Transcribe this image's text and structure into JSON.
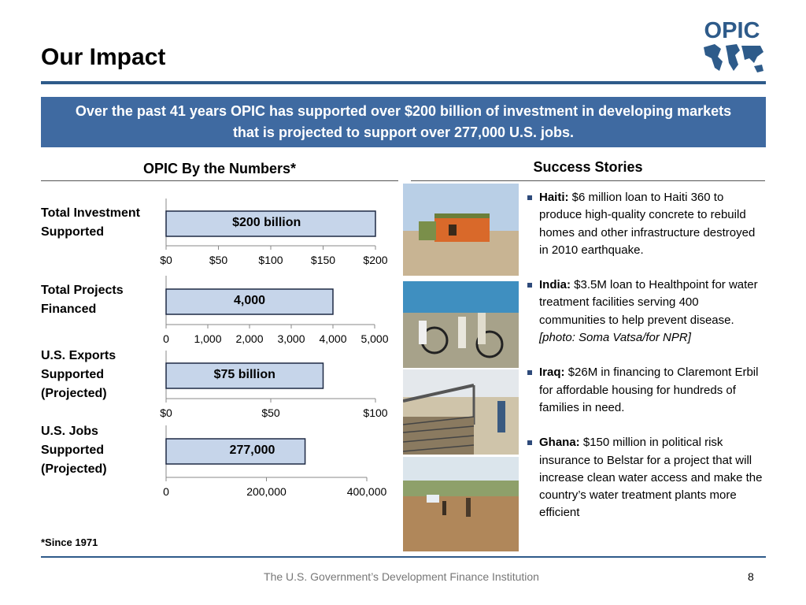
{
  "slide": {
    "title": "Our Impact",
    "banner": "Over the past 41 years OPIC has supported over $200 billion of investment in developing markets that is projected to support over 277,000 U.S. jobs.",
    "logo_text": "OPIC",
    "numbers_heading": "OPIC By the Numbers*",
    "stories_heading": "Success Stories",
    "footnote": "*Since 1971",
    "footer": "The U.S. Government’s Development Finance Institution",
    "page_number": "8"
  },
  "metrics": [
    {
      "label_lines": [
        "Total Investment",
        "Supported"
      ]
    },
    {
      "label_lines": [
        "Total Projects",
        "Financed"
      ]
    },
    {
      "label_lines": [
        "U.S. Exports",
        "Supported",
        "(Projected)"
      ]
    },
    {
      "label_lines": [
        "U.S. Jobs",
        "Supported",
        "(Projected)"
      ]
    }
  ],
  "chart_data": [
    {
      "type": "bar",
      "categories": [
        "Total Investment Supported"
      ],
      "values": [
        200
      ],
      "data_label": "$200 billion",
      "xlim": [
        0,
        200
      ],
      "ticks": [
        "$0",
        "$50",
        "$100",
        "$150",
        "$200"
      ],
      "tick_values": [
        0,
        50,
        100,
        150,
        200
      ]
    },
    {
      "type": "bar",
      "categories": [
        "Total Projects Financed"
      ],
      "values": [
        4000
      ],
      "data_label": "4,000",
      "xlim": [
        0,
        5000
      ],
      "ticks": [
        "0",
        "1,000",
        "2,000",
        "3,000",
        "4,000",
        "5,000"
      ],
      "tick_values": [
        0,
        1000,
        2000,
        3000,
        4000,
        5000
      ]
    },
    {
      "type": "bar",
      "categories": [
        "U.S. Exports Supported (Projected)"
      ],
      "values": [
        75
      ],
      "data_label": "$75 billion",
      "xlim": [
        0,
        100
      ],
      "ticks": [
        "$0",
        "$50",
        "$100"
      ],
      "tick_values": [
        0,
        50,
        100
      ]
    },
    {
      "type": "bar",
      "categories": [
        "U.S. Jobs Supported (Projected)"
      ],
      "values": [
        277000
      ],
      "data_label": "277,000",
      "xlim": [
        0,
        400000
      ],
      "ticks": [
        "0",
        "200,000",
        "400,000"
      ],
      "tick_values": [
        0,
        200000,
        400000
      ]
    }
  ],
  "stories": [
    {
      "country": "Haiti:",
      "text": "$6 million loan to Haiti 360 to produce high-quality concrete to rebuild homes and other infrastructure destroyed in 2010 earthquake.",
      "credit": ""
    },
    {
      "country": "India:",
      "text": "$3.5M loan to Healthpoint for water treatment facilities serving 400 communities to help prevent disease.",
      "credit": "[photo: Soma Vatsa/for NPR]"
    },
    {
      "country": "Iraq:",
      "text": "$26M in financing to Claremont Erbil for affordable housing for hundreds of families in need.",
      "credit": ""
    },
    {
      "country": "Ghana:",
      "text": "$150 million in  political risk insurance to Belstar for a project that will increase clean water access and make the country’s water treatment plants more efficient",
      "credit": ""
    }
  ],
  "colors": {
    "accent": "#2e5b8a",
    "banner": "#3f6aa1",
    "bar_fill": "#c6d5ea",
    "bar_stroke": "#1f2a44"
  }
}
